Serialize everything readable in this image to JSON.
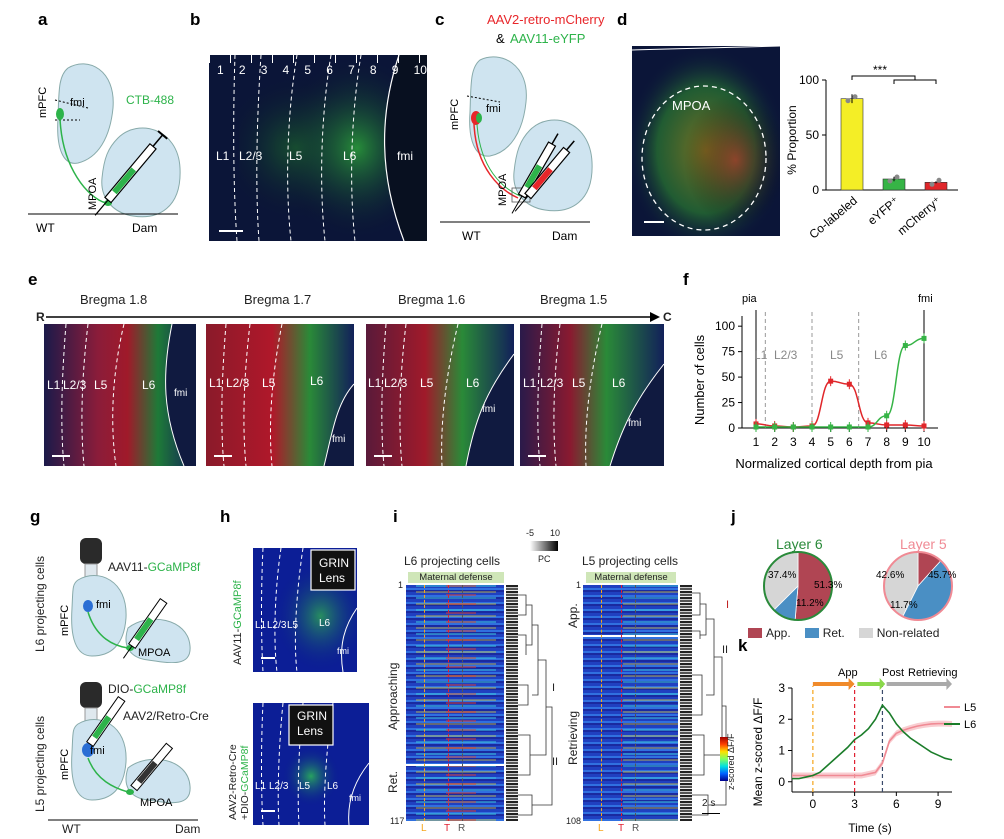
{
  "panels": {
    "a": {
      "letter": "a",
      "mpfc": "mPFC",
      "fmi": "fmi",
      "tracer": "CTB-488",
      "mpoa": "MPOA",
      "wt": "WT",
      "dam": "Dam",
      "colors": {
        "tracer": "#2db34a",
        "brain": "#cfe4f0"
      }
    },
    "b": {
      "letter": "b",
      "depth_numbers": [
        "1",
        "2",
        "3",
        "4",
        "5",
        "6",
        "7",
        "8",
        "9",
        "10"
      ],
      "layers": [
        "L1",
        "L2/3",
        "L5",
        "L6",
        "fmi"
      ]
    },
    "c": {
      "letter": "c",
      "virus_red": "AAV2-retro-mCherry",
      "amp": "&",
      "virus_green": "AAV11-eYFP",
      "mpfc": "mPFC",
      "fmi": "fmi",
      "mpoa": "MPOA",
      "wt": "WT",
      "dam": "Dam",
      "colors": {
        "red": "#e8262a",
        "green": "#2db34a"
      }
    },
    "d": {
      "letter": "d",
      "region": "MPOA",
      "sig": "***",
      "ylabel": "% Proportion",
      "categories": [
        "Co-labeled",
        "eYFP⁺",
        "mCherry⁺"
      ],
      "yticks": [
        "0",
        "50",
        "100"
      ]
    },
    "e": {
      "letter": "e",
      "rostral": "R",
      "caudal": "C",
      "sections": [
        {
          "bregma": "Bregma 1.8",
          "layers": [
            "L1",
            "L2/3",
            "L5",
            "L6",
            "fmi"
          ]
        },
        {
          "bregma": "Bregma 1.7",
          "layers": [
            "L1",
            "L2/3",
            "L5",
            "L6",
            "fmi"
          ]
        },
        {
          "bregma": "Bregma 1.6",
          "layers": [
            "L1",
            "L2/3",
            "L5",
            "L6",
            "fmi"
          ]
        },
        {
          "bregma": "Bregma 1.5",
          "layers": [
            "L1",
            "L2/3",
            "L5",
            "L6",
            "fmi"
          ]
        }
      ]
    },
    "f": {
      "letter": "f",
      "pia": "pia",
      "fmi": "fmi",
      "layers": [
        "L1",
        "L2/3",
        "L5",
        "L6"
      ],
      "xlabel": "Normalized cortical depth from pia",
      "ylabel": "Number of cells",
      "xticks": [
        "1",
        "2",
        "3",
        "4",
        "5",
        "6",
        "7",
        "8",
        "9",
        "10"
      ],
      "yticks": [
        "0",
        "25",
        "50",
        "75",
        "100"
      ]
    },
    "g": {
      "letter": "g",
      "top_side": "L6 projecting cells",
      "top_virus_prefix": "AAV11-",
      "top_virus_gene": "GCaMP8f",
      "bottom_side": "L5 projecting cells",
      "bottom_virus_prefix": "DIO-",
      "bottom_virus_gene": "GCaMP8f",
      "bottom_virus2": "AAV2/Retro-Cre",
      "mpfc": "mPFC",
      "fmi": "fmi",
      "mpoa": "MPOA",
      "wt": "WT",
      "dam": "Dam"
    },
    "h": {
      "letter": "h",
      "grin_top": "GRIN",
      "lens_top": "Lens",
      "side_top_prefix": "AAV11-",
      "side_top_gene": "GCaMP8f",
      "layers_top": [
        "L1",
        "L2/3",
        "L5",
        "L6",
        "fmi"
      ],
      "grin_bottom": "GRIN",
      "lens_bottom": "Lens",
      "side_bottom_line1": "AAV2-Retro-Cre",
      "side_bottom_line2_prefix": "+DIO-",
      "side_bottom_line2_gene": "GCaMP8f",
      "layers_bottom": [
        "L1",
        "L2/3",
        "L5",
        "L6",
        "fmi"
      ]
    },
    "i": {
      "letter": "i",
      "left_title": "L6 projecting cells",
      "right_title": "L5 projecting cells",
      "cbar_min": "-5",
      "cbar_max": "10",
      "cbar_label": "PC",
      "behavior_bar": "Maternal defense",
      "left_n_start": "1",
      "left_n_end": "117",
      "right_n_start": "1",
      "right_n_end": "108",
      "left_groups": [
        "Approaching",
        "Ret."
      ],
      "right_groups": [
        "App.",
        "Retrieving"
      ],
      "left_clusters": [
        "I",
        "II"
      ],
      "right_clusters": [
        "I",
        "II"
      ],
      "markers": [
        "L",
        "T",
        "R"
      ],
      "scale": "2 s",
      "zlabel": "z-scored ΔF/F"
    },
    "j": {
      "letter": "j",
      "left_title": "Layer 6",
      "right_title": "Layer 5",
      "legend": [
        "App.",
        "Ret.",
        "Non-related"
      ]
    },
    "k": {
      "letter": "k",
      "phases": [
        "App",
        "Post",
        "Retrieving"
      ],
      "legend": [
        "L5",
        "L6"
      ],
      "xlabel": "Time (s)",
      "ylabel": "Mean z-scored ΔF/F",
      "xticks": [
        "0",
        "3",
        "6",
        "9"
      ],
      "yticks": [
        "0",
        "1",
        "2",
        "3"
      ]
    }
  },
  "chart_data": [
    {
      "id": "d",
      "type": "bar",
      "categories": [
        "Co-labeled",
        "eYFP⁺",
        "mCherry⁺"
      ],
      "values": [
        83,
        10,
        7
      ],
      "errors": [
        4,
        2,
        1
      ],
      "colors": [
        "#f4ee26",
        "#36b446",
        "#e0262a"
      ],
      "ylabel": "% Proportion",
      "ylim": [
        0,
        100
      ],
      "annotation": "***"
    },
    {
      "id": "f",
      "type": "line",
      "x": [
        1,
        2,
        3,
        4,
        5,
        6,
        7,
        8,
        9,
        10
      ],
      "series": [
        {
          "color": "#e0262a",
          "values": [
            4,
            2,
            1,
            2,
            46,
            43,
            5,
            3,
            3,
            2
          ]
        },
        {
          "color": "#36b446",
          "values": [
            1,
            1,
            1,
            1,
            1,
            1,
            1,
            12,
            81,
            88
          ]
        }
      ],
      "xlabel": "Normalized cortical depth from pia",
      "ylabel": "Number of cells",
      "ylim": [
        0,
        110
      ]
    },
    {
      "id": "j-layer6",
      "type": "pie",
      "title": "Layer 6",
      "labels": [
        "App.",
        "Ret.",
        "Non-related"
      ],
      "values": [
        51.3,
        11.2,
        37.4
      ],
      "value_labels": [
        "51.3%",
        "11.2%",
        "37.4%"
      ],
      "colors": [
        "#b04553",
        "#4a8fc4",
        "#d6d6d6"
      ]
    },
    {
      "id": "j-layer5",
      "type": "pie",
      "title": "Layer 5",
      "labels": [
        "App.",
        "Ret.",
        "Non-related"
      ],
      "values": [
        11.7,
        45.7,
        42.6
      ],
      "value_labels": [
        "11.7%",
        "45.7%",
        "42.6%"
      ],
      "colors": [
        "#b04553",
        "#4a8fc4",
        "#d6d6d6"
      ]
    },
    {
      "id": "k",
      "type": "line",
      "x": [
        -1.5,
        -1,
        -0.5,
        0,
        0.5,
        1,
        1.5,
        2,
        2.5,
        3,
        3.5,
        4,
        4.5,
        5,
        5.5,
        6,
        6.5,
        7,
        7.5,
        8,
        8.5,
        9,
        9.5,
        10
      ],
      "series": [
        {
          "name": "L5",
          "color": "#f08a94",
          "values": [
            0.2,
            0.2,
            0.2,
            0.2,
            0.2,
            0.2,
            0.2,
            0.2,
            0.2,
            0.2,
            0.2,
            0.25,
            0.3,
            0.6,
            1.3,
            1.55,
            1.65,
            1.72,
            1.78,
            1.82,
            1.85,
            1.86,
            1.86,
            1.85
          ]
        },
        {
          "name": "L6",
          "color": "#1b7d2a",
          "values": [
            0.1,
            0.1,
            0.15,
            0.2,
            0.3,
            0.5,
            0.7,
            0.9,
            1.1,
            1.35,
            1.5,
            1.7,
            2.0,
            2.45,
            2.2,
            1.85,
            1.6,
            1.4,
            1.25,
            1.1,
            0.95,
            0.85,
            0.75,
            0.7
          ]
        }
      ],
      "xlabel": "Time (s)",
      "ylabel": "Mean z-scored ΔF/F",
      "xlim": [
        -1.5,
        10
      ],
      "ylim": [
        -0.2,
        3
      ],
      "markers": [
        0,
        3,
        5
      ]
    }
  ]
}
